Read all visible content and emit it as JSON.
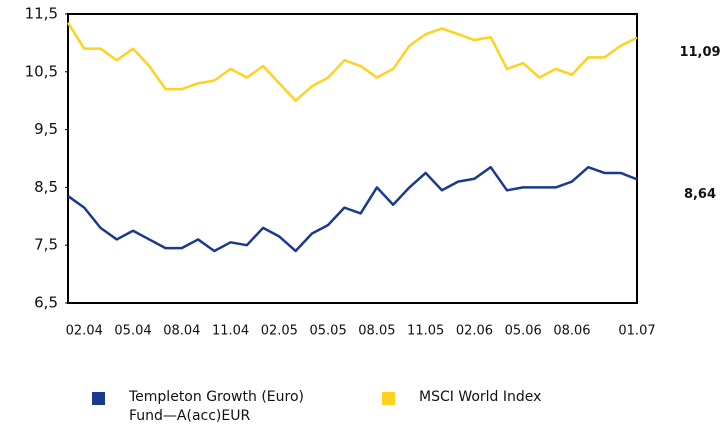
{
  "chart_data": {
    "type": "line",
    "categories": [
      null,
      "02.04",
      null,
      null,
      "05.04",
      null,
      null,
      "08.04",
      null,
      null,
      "11.04",
      null,
      null,
      "02.05",
      null,
      null,
      "05.05",
      null,
      null,
      "08.05",
      null,
      null,
      "11.05",
      null,
      null,
      "02.06",
      null,
      null,
      "05.06",
      null,
      null,
      "08.06",
      null,
      null,
      null,
      "01.07"
    ],
    "series": [
      {
        "name": "Templeton Growth (Euro) Fund—A(acc)EUR",
        "color": "#1b3a8e",
        "values": [
          8.35,
          8.15,
          7.8,
          7.6,
          7.75,
          7.6,
          7.45,
          7.45,
          7.6,
          7.4,
          7.55,
          7.5,
          7.8,
          7.65,
          7.4,
          7.7,
          7.85,
          8.15,
          8.05,
          8.5,
          8.2,
          8.5,
          8.75,
          8.45,
          8.6,
          8.65,
          8.85,
          8.45,
          8.5,
          8.5,
          8.5,
          8.6,
          8.85,
          8.75,
          8.75,
          8.64
        ],
        "value_labels": [
          null,
          null,
          null,
          null,
          null,
          null,
          null,
          null,
          null,
          null,
          null,
          null,
          null,
          null,
          null,
          null,
          null,
          null,
          null,
          null,
          null,
          null,
          null,
          null,
          null,
          null,
          null,
          null,
          null,
          null,
          null,
          null,
          null,
          null,
          null,
          "8,64"
        ]
      },
      {
        "name": "MSCI World Index",
        "color": "#ffd21f",
        "values": [
          11.35,
          10.9,
          10.9,
          10.7,
          10.9,
          10.6,
          10.2,
          10.2,
          10.3,
          10.35,
          10.55,
          10.4,
          10.6,
          10.3,
          10.0,
          10.25,
          10.4,
          10.7,
          10.6,
          10.4,
          10.55,
          10.95,
          11.15,
          11.25,
          11.15,
          11.05,
          11.1,
          10.55,
          10.65,
          10.4,
          10.55,
          10.45,
          10.75,
          10.75,
          10.95,
          11.09
        ],
        "value_labels": [
          null,
          null,
          null,
          null,
          null,
          null,
          null,
          null,
          null,
          null,
          null,
          null,
          null,
          null,
          null,
          null,
          null,
          null,
          null,
          null,
          null,
          null,
          null,
          null,
          null,
          null,
          null,
          null,
          null,
          null,
          null,
          null,
          null,
          null,
          null,
          "11,09"
        ]
      }
    ],
    "ylim": [
      6.5,
      11.5
    ],
    "yticks": [
      {
        "value": 6.5,
        "label": "6,5"
      },
      {
        "value": 7.5,
        "label": "7,5"
      },
      {
        "value": 8.5,
        "label": "8,5"
      },
      {
        "value": 9.5,
        "label": "9,5"
      },
      {
        "value": 10.5,
        "label": "10,5"
      },
      {
        "value": 11.5,
        "label": "11,5"
      }
    ],
    "grid": false
  }
}
